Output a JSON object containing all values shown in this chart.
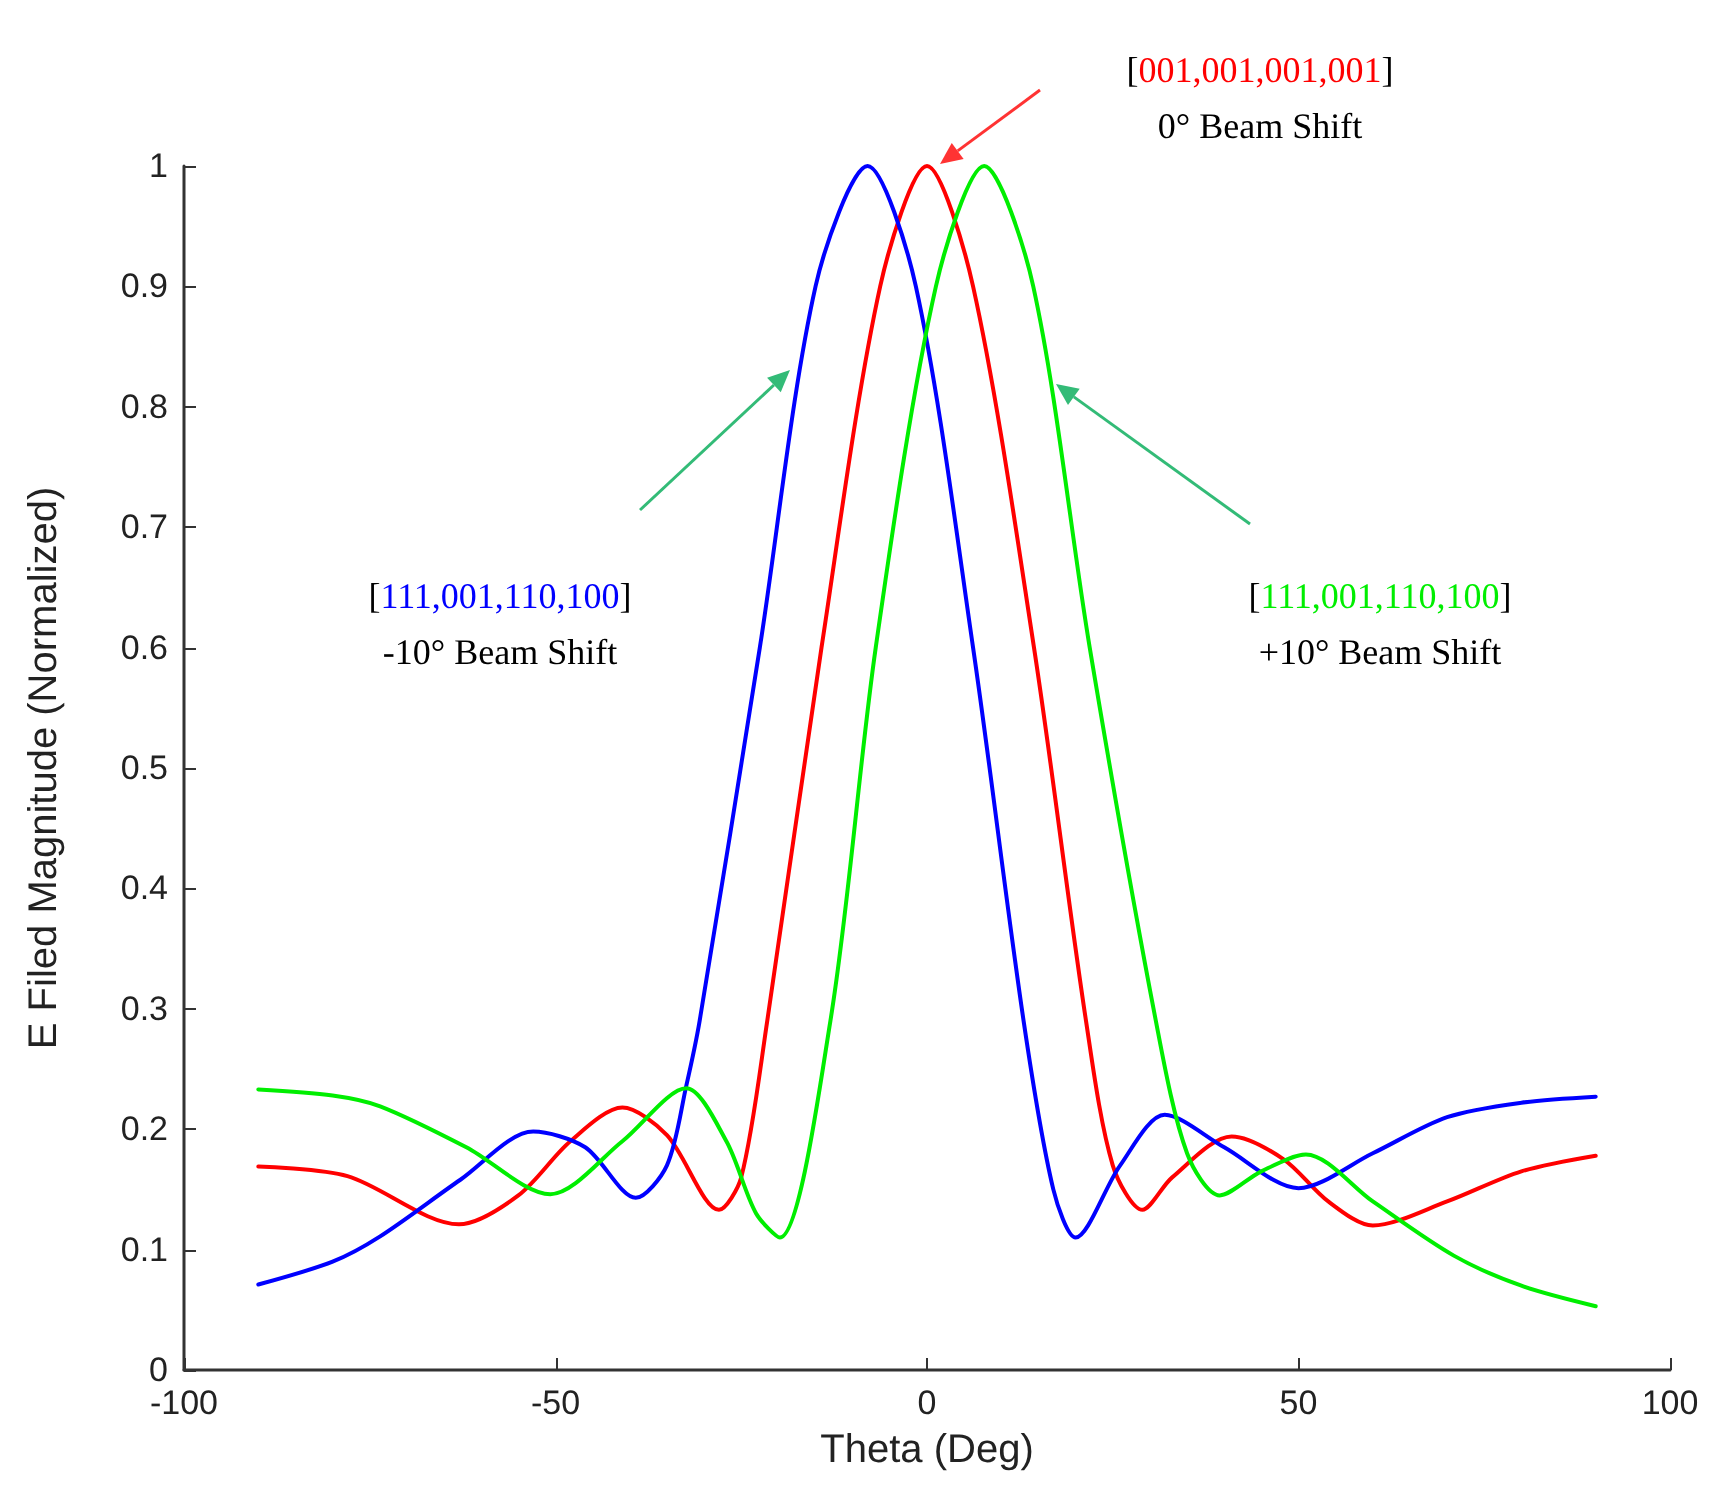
{
  "chart_data": {
    "type": "line",
    "xlabel": "Theta (Deg)",
    "ylabel": "E Filed Magnitude (Normalized)",
    "xlim": [
      -100,
      100
    ],
    "xticks": [
      -100,
      -50,
      0,
      50,
      100
    ],
    "ylim": [
      0,
      1
    ],
    "yticks": [
      0,
      0.1,
      0.2,
      0.3,
      0.4,
      0.5,
      0.6,
      0.7,
      0.8,
      0.9,
      1
    ],
    "marker": "none",
    "line_style": "solid",
    "series": [
      {
        "color": "#ff0000",
        "x": [
          -90,
          -78,
          -63,
          -55,
          -48,
          -41,
          -35,
          -28,
          -25,
          -21.5,
          -14.2,
          -6.3,
          0,
          6.2,
          14.4,
          21.4,
          25,
          29,
          33,
          41,
          48,
          54,
          60,
          70,
          80,
          90
        ],
        "values": [
          0.169,
          0.161,
          0.121,
          0.145,
          0.19,
          0.218,
          0.195,
          0.133,
          0.16,
          0.29,
          0.6,
          0.9,
          1,
          0.9,
          0.6,
          0.29,
          0.17,
          0.133,
          0.16,
          0.194,
          0.175,
          0.14,
          0.12,
          0.14,
          0.165,
          0.178
        ]
      },
      {
        "color": "#0000ff",
        "x": [
          -90,
          -80,
          -73.6,
          -62.8,
          -53,
          -46,
          -39.2,
          -35,
          -32.4,
          -30.6,
          -22.5,
          -15,
          -8,
          -1.5,
          6.2,
          13,
          17,
          20,
          26,
          32,
          40,
          50,
          60,
          70,
          80,
          90
        ],
        "values": [
          0.071,
          0.09,
          0.111,
          0.158,
          0.198,
          0.185,
          0.143,
          0.17,
          0.236,
          0.29,
          0.6,
          0.9,
          1,
          0.9,
          0.6,
          0.29,
          0.15,
          0.11,
          0.17,
          0.212,
          0.185,
          0.151,
          0.18,
          0.21,
          0.222,
          0.227
        ]
      },
      {
        "color": "#00ee00",
        "x": [
          -90,
          -80,
          -73.6,
          -62,
          -50.7,
          -41,
          -32.4,
          -27,
          -23,
          -19.8,
          -13,
          -6.9,
          1.2,
          7.7,
          14.3,
          21.9,
          30.8,
          35,
          39.4,
          45,
          51,
          60,
          70.9,
          80,
          90
        ],
        "values": [
          0.233,
          0.228,
          0.219,
          0.185,
          0.146,
          0.19,
          0.234,
          0.19,
          0.13,
          0.11,
          0.29,
          0.6,
          0.9,
          1,
          0.9,
          0.6,
          0.29,
          0.18,
          0.145,
          0.165,
          0.179,
          0.14,
          0.095,
          0.07,
          0.053
        ]
      }
    ],
    "annotations": [
      "[001,001,001,001]\n0° Beam Shift",
      "[111,001,110,100]\n-10° Beam Shift",
      "[111,001,110,100]\n+10° Beam Shift"
    ]
  }
}
